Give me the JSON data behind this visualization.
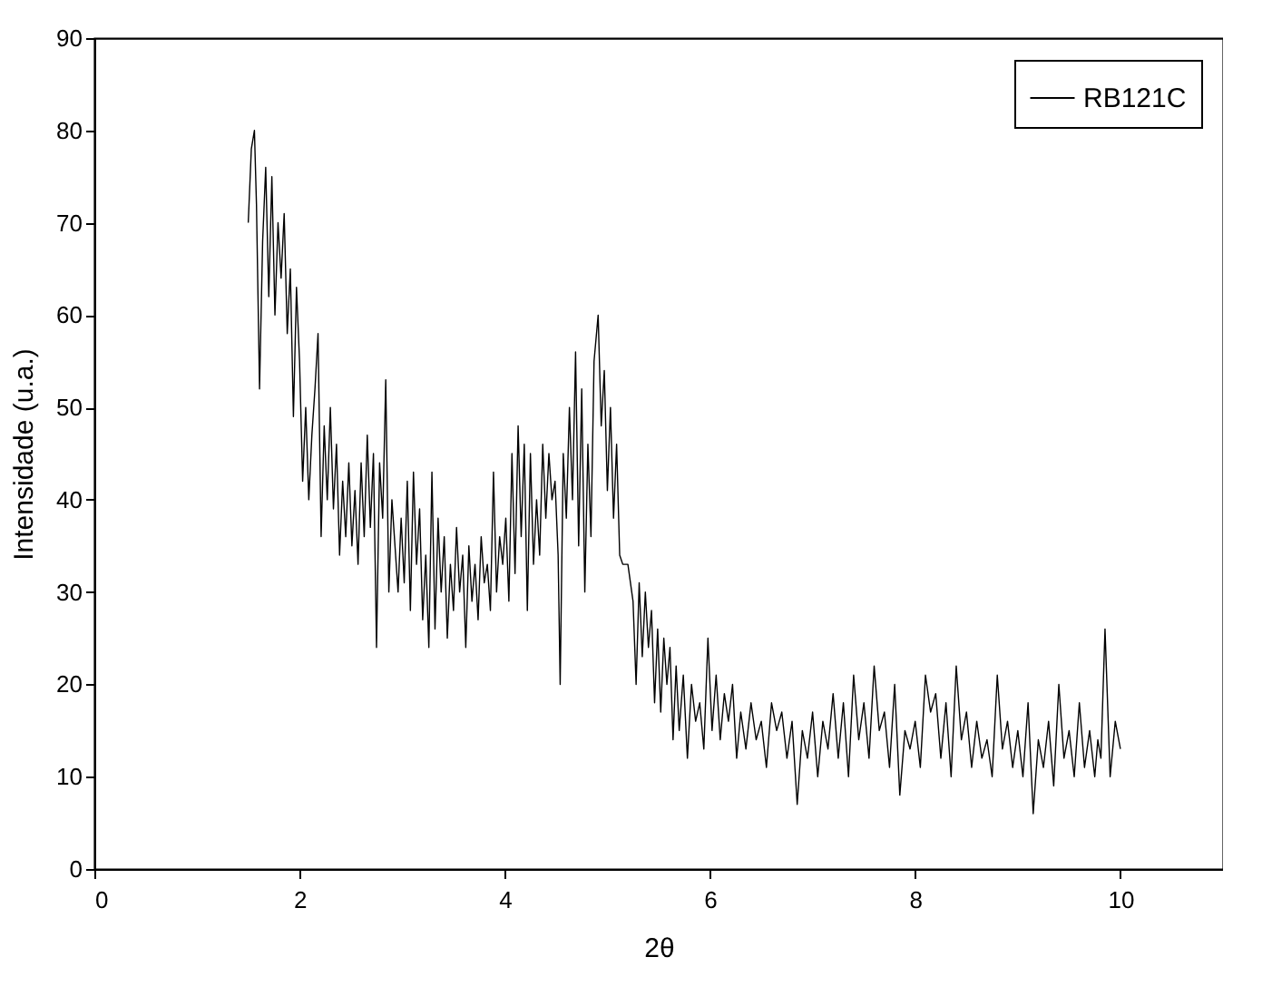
{
  "chart_data": {
    "type": "line",
    "xlabel": "2θ",
    "ylabel": "Intensidade (u.a.)",
    "xlim": [
      0,
      11
    ],
    "ylim": [
      0,
      90
    ],
    "xticks": [
      0,
      2,
      4,
      6,
      8,
      10
    ],
    "yticks": [
      0,
      10,
      20,
      30,
      40,
      50,
      60,
      70,
      80,
      90
    ],
    "grid": false,
    "legend": "top right",
    "line_style": "solid",
    "marker": "none",
    "series": [
      {
        "name": "RB121C",
        "color": "#000000",
        "x": [
          1.5,
          1.53,
          1.56,
          1.58,
          1.61,
          1.64,
          1.67,
          1.7,
          1.73,
          1.76,
          1.79,
          1.82,
          1.85,
          1.88,
          1.91,
          1.94,
          1.97,
          2.0,
          2.03,
          2.06,
          2.09,
          2.12,
          2.15,
          2.18,
          2.21,
          2.24,
          2.27,
          2.3,
          2.33,
          2.36,
          2.39,
          2.42,
          2.45,
          2.48,
          2.51,
          2.54,
          2.57,
          2.6,
          2.63,
          2.66,
          2.69,
          2.72,
          2.75,
          2.78,
          2.81,
          2.84,
          2.87,
          2.9,
          2.93,
          2.96,
          2.99,
          3.02,
          3.05,
          3.08,
          3.11,
          3.14,
          3.17,
          3.2,
          3.23,
          3.26,
          3.29,
          3.32,
          3.35,
          3.38,
          3.41,
          3.44,
          3.47,
          3.5,
          3.53,
          3.56,
          3.59,
          3.62,
          3.65,
          3.68,
          3.71,
          3.74,
          3.77,
          3.8,
          3.83,
          3.86,
          3.89,
          3.92,
          3.95,
          3.98,
          4.01,
          4.04,
          4.07,
          4.1,
          4.13,
          4.16,
          4.19,
          4.22,
          4.25,
          4.28,
          4.31,
          4.34,
          4.37,
          4.4,
          4.43,
          4.46,
          4.49,
          4.52,
          4.54,
          4.57,
          4.6,
          4.63,
          4.66,
          4.69,
          4.72,
          4.75,
          4.78,
          4.81,
          4.84,
          4.87,
          4.91,
          4.94,
          4.97,
          5.0,
          5.03,
          5.06,
          5.09,
          5.12,
          5.15,
          5.2,
          5.25,
          5.28,
          5.31,
          5.34,
          5.37,
          5.4,
          5.43,
          5.46,
          5.49,
          5.52,
          5.55,
          5.58,
          5.61,
          5.64,
          5.67,
          5.7,
          5.74,
          5.78,
          5.82,
          5.86,
          5.9,
          5.94,
          5.98,
          6.02,
          6.06,
          6.1,
          6.14,
          6.18,
          6.22,
          6.26,
          6.3,
          6.35,
          6.4,
          6.45,
          6.5,
          6.55,
          6.6,
          6.65,
          6.7,
          6.75,
          6.8,
          6.85,
          6.9,
          6.95,
          7.0,
          7.05,
          7.1,
          7.15,
          7.2,
          7.25,
          7.3,
          7.35,
          7.4,
          7.45,
          7.5,
          7.55,
          7.6,
          7.65,
          7.7,
          7.75,
          7.8,
          7.85,
          7.9,
          7.95,
          8.0,
          8.05,
          8.1,
          8.15,
          8.2,
          8.25,
          8.3,
          8.35,
          8.4,
          8.45,
          8.5,
          8.55,
          8.6,
          8.65,
          8.7,
          8.75,
          8.8,
          8.85,
          8.9,
          8.95,
          9.0,
          9.05,
          9.1,
          9.15,
          9.2,
          9.25,
          9.3,
          9.35,
          9.4,
          9.45,
          9.5,
          9.55,
          9.6,
          9.65,
          9.7,
          9.75,
          9.78,
          9.81,
          9.85,
          9.9,
          9.95,
          10.0
        ],
        "values": [
          70,
          78,
          80,
          72,
          52,
          68,
          76,
          62,
          75,
          60,
          70,
          64,
          71,
          58,
          65,
          49,
          63,
          55,
          42,
          50,
          40,
          47,
          52,
          58,
          36,
          48,
          40,
          50,
          39,
          46,
          34,
          42,
          36,
          44,
          35,
          41,
          33,
          44,
          36,
          47,
          37,
          45,
          24,
          44,
          38,
          53,
          30,
          40,
          35,
          30,
          38,
          31,
          42,
          28,
          43,
          33,
          39,
          27,
          34,
          24,
          43,
          26,
          38,
          30,
          36,
          25,
          33,
          28,
          37,
          30,
          34,
          24,
          35,
          29,
          33,
          27,
          36,
          31,
          33,
          28,
          43,
          30,
          36,
          33,
          38,
          29,
          45,
          32,
          48,
          36,
          46,
          28,
          45,
          33,
          40,
          34,
          46,
          38,
          45,
          40,
          42,
          34,
          20,
          45,
          38,
          50,
          40,
          56,
          35,
          52,
          30,
          46,
          36,
          55,
          60,
          48,
          54,
          41,
          50,
          38,
          46,
          34,
          33,
          33,
          29,
          20,
          31,
          23,
          30,
          24,
          28,
          18,
          26,
          17,
          25,
          20,
          24,
          14,
          22,
          15,
          21,
          12,
          20,
          16,
          18,
          13,
          25,
          15,
          21,
          14,
          19,
          16,
          20,
          12,
          17,
          13,
          18,
          14,
          16,
          11,
          18,
          15,
          17,
          12,
          16,
          7,
          15,
          12,
          17,
          10,
          16,
          13,
          19,
          12,
          18,
          10,
          21,
          14,
          18,
          12,
          22,
          15,
          17,
          11,
          20,
          8,
          15,
          13,
          16,
          11,
          21,
          17,
          19,
          12,
          18,
          10,
          22,
          14,
          17,
          11,
          16,
          12,
          14,
          10,
          21,
          13,
          16,
          11,
          15,
          10,
          18,
          6,
          14,
          11,
          16,
          9,
          20,
          12,
          15,
          10,
          18,
          11,
          15,
          10,
          14,
          12,
          26,
          10,
          16,
          13
        ]
      }
    ]
  }
}
